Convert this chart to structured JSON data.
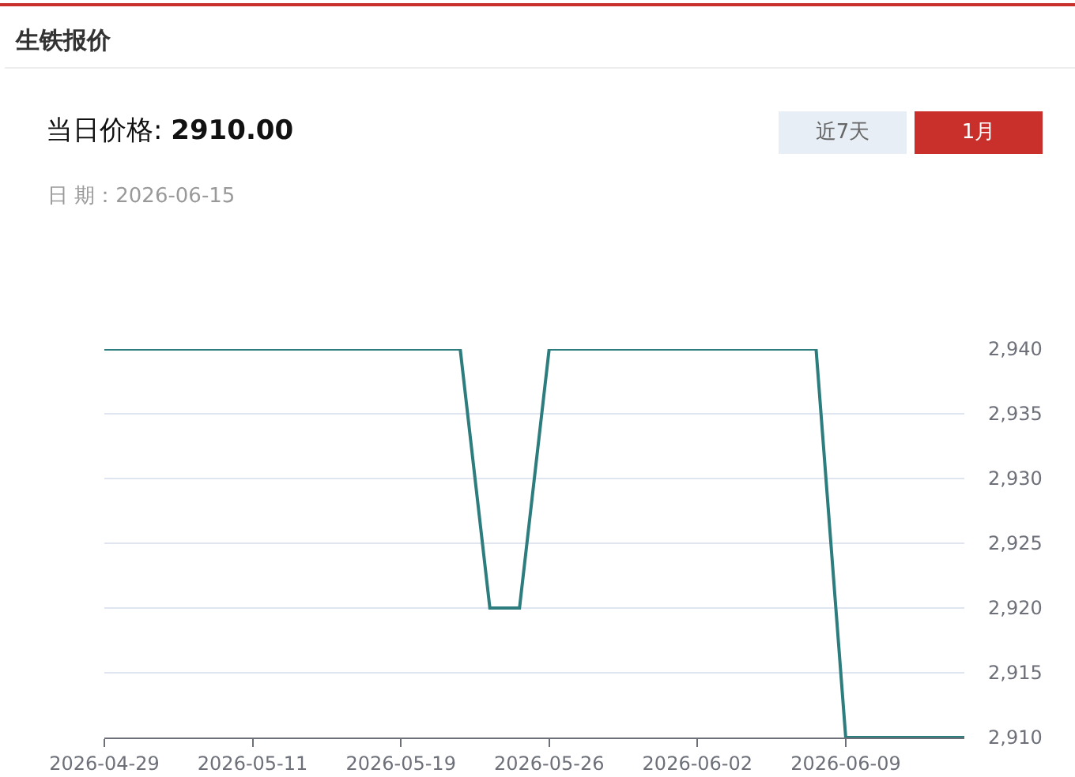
{
  "chart_data": {
    "type": "line",
    "title": "生铁报价",
    "subtitle": "当日价格: 2910.00",
    "annotations": [
      "日 期：2026-06-15",
      "近7天",
      "1月"
    ],
    "categories": [
      "2026-04-29",
      null,
      null,
      null,
      null,
      "2026-05-11",
      null,
      null,
      null,
      null,
      "2026-05-19",
      null,
      null,
      null,
      null,
      "2026-05-26",
      null,
      null,
      null,
      null,
      "2026-06-02",
      null,
      null,
      null,
      null,
      "2026-06-09",
      null,
      null,
      null,
      null
    ],
    "series": [
      {
        "color": "#2e7d7e",
        "values": [
          2940,
          2940,
          2940,
          2940,
          2940,
          2940,
          2940,
          2940,
          2940,
          2940,
          2940,
          2940,
          2940,
          2920,
          2920,
          2940,
          2940,
          2940,
          2940,
          2940,
          2940,
          2940,
          2940,
          2940,
          2940,
          2910,
          2910,
          2910,
          2910,
          2910
        ]
      }
    ],
    "ylim": [
      2910,
      2940
    ],
    "yticks": [
      {
        "value": 2910,
        "label": "2,910"
      },
      {
        "value": 2915,
        "label": "2,915"
      },
      {
        "value": 2920,
        "label": "2,920"
      },
      {
        "value": 2925,
        "label": "2,925"
      },
      {
        "value": 2930,
        "label": "2,930"
      },
      {
        "value": 2935,
        "label": "2,935"
      },
      {
        "value": 2940,
        "label": "2,940"
      }
    ],
    "grid": "y"
  }
}
